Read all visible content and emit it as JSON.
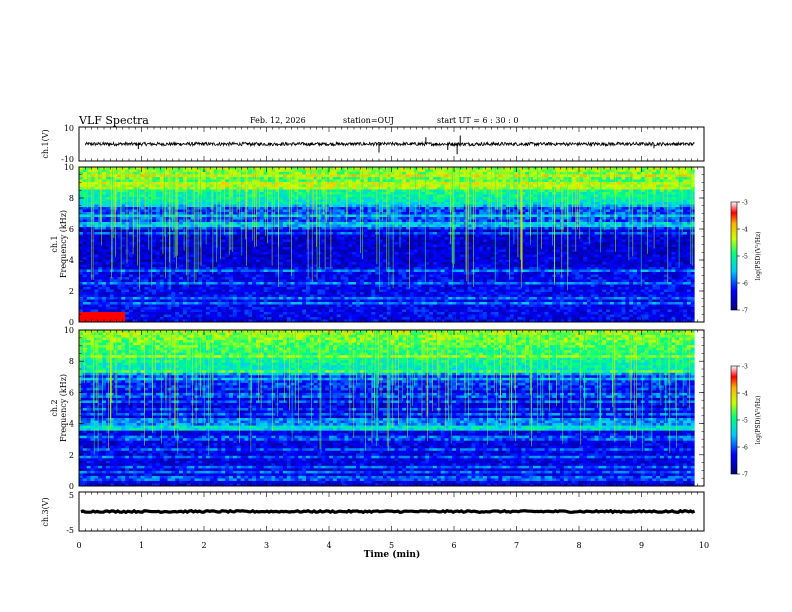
{
  "header": {
    "title": "VLF Spectra",
    "date": "Feb. 12, 2026",
    "station": "station=OUJ",
    "start": "start  UT =  6 : 30 : 0"
  },
  "chart_data": [
    {
      "type": "line",
      "ylabel": "ch.1(V)",
      "ylim": [
        -10,
        10
      ],
      "yticks": [
        "10",
        "-10"
      ],
      "xlim": [
        0,
        10
      ],
      "baseline": 0,
      "noise_amplitude": 1,
      "spikes": [
        {
          "x": 4.8,
          "y": -5
        },
        {
          "x": 5.55,
          "y": 4
        },
        {
          "x": 6.05,
          "y": -6
        },
        {
          "x": 6.1,
          "y": 5
        },
        {
          "x": 0.95,
          "y": -3
        },
        {
          "x": 9.2,
          "y": -2.5
        },
        {
          "x": 5.9,
          "y": -3.5
        }
      ]
    },
    {
      "type": "heatmap",
      "ylabel": "ch.1\nFrequency  (kHz)",
      "ylim": [
        0,
        10
      ],
      "yticks": [
        "0",
        "2",
        "4",
        "6",
        "8",
        "10"
      ],
      "xlim": [
        0,
        10
      ],
      "data_end": 9.85,
      "colorbar": {
        "label": "log(PSD)(V²/Hz)",
        "range": [
          -7,
          -3
        ],
        "ticks": [
          "-3",
          "-4",
          "-5",
          "-6",
          "-7"
        ]
      }
    },
    {
      "type": "heatmap",
      "ylabel": "ch.2\nFrequency  (kHz)",
      "ylim": [
        0,
        10
      ],
      "yticks": [
        "0",
        "2",
        "4",
        "6",
        "8",
        "10"
      ],
      "xlim": [
        0,
        10
      ],
      "data_end": 9.85,
      "colorbar": {
        "label": "log(PSD)(V²/Hz)",
        "range": [
          -7,
          -3
        ],
        "ticks": [
          "-3",
          "-4",
          "-5",
          "-6",
          "-7"
        ]
      }
    },
    {
      "type": "line",
      "ylabel": "ch.3(V)",
      "ylim": [
        -5,
        5
      ],
      "yticks": [
        "5",
        "0",
        "-5"
      ],
      "xlim": [
        0,
        10
      ],
      "baseline": 0,
      "noise_amplitude": 0.2,
      "xlabel": "Time  (min)",
      "xticks": [
        "0",
        "1",
        "2",
        "3",
        "4",
        "5",
        "6",
        "7",
        "8",
        "9",
        "10"
      ]
    }
  ]
}
